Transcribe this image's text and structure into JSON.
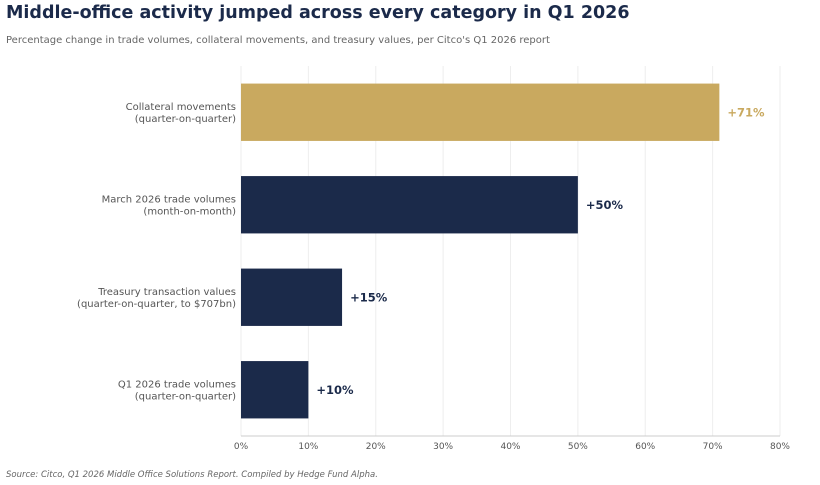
{
  "title": "Middle-office activity jumped across every category in Q1 2026",
  "subtitle": "Percentage change in trade volumes, collateral movements, and treasury values, per Citco's Q1 2026 report",
  "source": "Source: Citco, Q1 2026 Middle Office Solutions Report. Compiled by Hedge Fund Alpha.",
  "colors": {
    "highlight": "#c9a95f",
    "primary": "#1b2a4a",
    "grid": "#eeeeee",
    "axis": "#cccccc"
  },
  "chart_data": {
    "type": "bar",
    "orientation": "horizontal",
    "categories": [
      [
        "Collateral movements",
        "(quarter-on-quarter)"
      ],
      [
        "March 2026 trade volumes",
        "(month-on-month)"
      ],
      [
        "Treasury transaction values",
        "(quarter-on-quarter, to $707bn)"
      ],
      [
        "Q1 2026 trade volumes",
        "(quarter-on-quarter)"
      ]
    ],
    "values": [
      71,
      50,
      15,
      10
    ],
    "value_labels": [
      "+71%",
      "+50%",
      "+15%",
      "+10%"
    ],
    "highlight_index": 0,
    "xlim": [
      0,
      80
    ],
    "xticks": [
      0,
      10,
      20,
      30,
      40,
      50,
      60,
      70,
      80
    ],
    "xtick_labels": [
      "0%",
      "10%",
      "20%",
      "30%",
      "40%",
      "50%",
      "60%",
      "70%",
      "80%"
    ],
    "grid": true
  }
}
